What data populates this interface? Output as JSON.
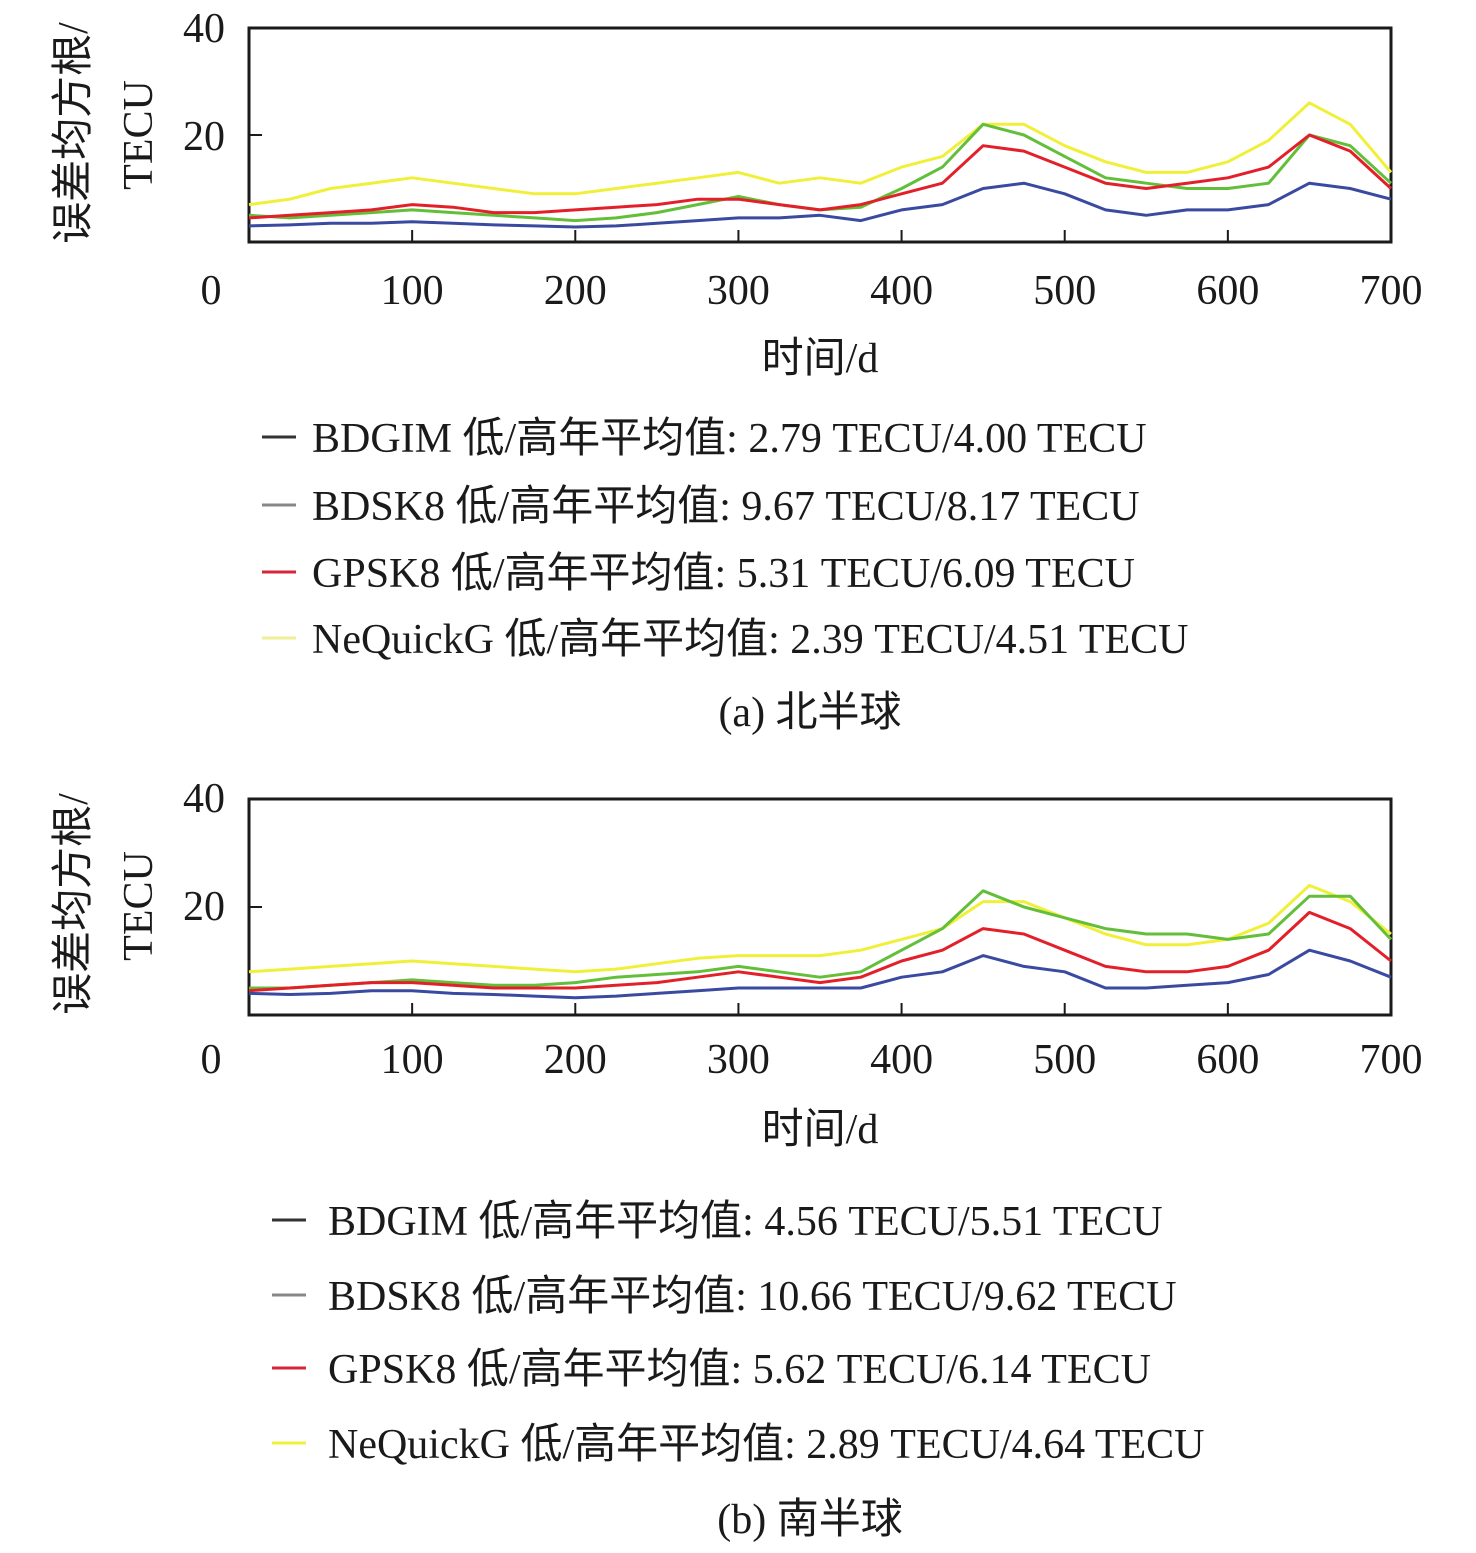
{
  "colors": {
    "BDGIM": "#3a4aa0",
    "BDSK8": "#63bf3a",
    "GPSK8": "#e3202a",
    "NeQuickG": "#f0f03a",
    "axis": "#1a1a1a"
  },
  "legend_swatch_colors": {
    "BDGIM": "#333333",
    "BDSK8": "#888888",
    "GPSK8": "#d6273a",
    "NeQuickG_a": "#efef9a",
    "NeQuickG_b": "#f0f03a"
  },
  "chart_data": [
    {
      "type": "line",
      "ylabel_line1": "误差均方根/",
      "ylabel_line2": "TECU",
      "xlabel": "时间/d",
      "xlim": [
        0,
        700
      ],
      "ylim": [
        0,
        40
      ],
      "xticks": [
        "0",
        "100",
        "200",
        "300",
        "400",
        "500",
        "600",
        "700"
      ],
      "yticks": [
        "40",
        "20"
      ],
      "caption": "(a) 北半球",
      "legend": [
        {
          "key": "BDGIM",
          "text": "BDGIM 低/高年平均值: 2.79 TECU/4.00 TECU"
        },
        {
          "key": "BDSK8",
          "text": "BDSK8 低/高年平均值: 9.67 TECU/8.17 TECU"
        },
        {
          "key": "GPSK8",
          "text": "GPSK8 低/高年平均值: 5.31 TECU/6.09 TECU"
        },
        {
          "key": "NeQuickG",
          "text": "NeQuickG 低/高年平均值: 2.39 TECU/4.51 TECU"
        }
      ],
      "series": [
        {
          "name": "BDGIM",
          "x": [
            0,
            25,
            50,
            75,
            100,
            125,
            150,
            175,
            200,
            225,
            250,
            275,
            300,
            325,
            350,
            375,
            400,
            425,
            450,
            475,
            500,
            525,
            550,
            575,
            600,
            625,
            650,
            675,
            700
          ],
          "y": [
            3,
            3.2,
            3.5,
            3.5,
            3.8,
            3.5,
            3.2,
            3,
            2.8,
            3,
            3.5,
            4,
            4.5,
            4.5,
            5,
            4,
            6,
            7,
            10,
            11,
            9,
            6,
            5,
            6,
            6,
            7,
            11,
            10,
            8
          ]
        },
        {
          "name": "BDSK8",
          "x": [
            0,
            25,
            50,
            75,
            100,
            125,
            150,
            175,
            200,
            225,
            250,
            275,
            300,
            325,
            350,
            375,
            400,
            425,
            450,
            475,
            500,
            525,
            550,
            575,
            600,
            625,
            650,
            675,
            700
          ],
          "y": [
            5,
            4.5,
            5,
            5.5,
            6,
            5.5,
            5,
            4.5,
            4,
            4.5,
            5.5,
            7,
            8.5,
            7,
            6,
            6.5,
            10,
            14,
            22,
            20,
            16,
            12,
            11,
            10,
            10,
            11,
            20,
            18,
            11
          ]
        },
        {
          "name": "GPSK8",
          "x": [
            0,
            25,
            50,
            75,
            100,
            125,
            150,
            175,
            200,
            225,
            250,
            275,
            300,
            325,
            350,
            375,
            400,
            425,
            450,
            475,
            500,
            525,
            550,
            575,
            600,
            625,
            650,
            675,
            700
          ],
          "y": [
            4.5,
            5,
            5.5,
            6,
            7,
            6.5,
            5.5,
            5.5,
            6,
            6.5,
            7,
            8,
            8,
            7,
            6,
            7,
            9,
            11,
            18,
            17,
            14,
            11,
            10,
            11,
            12,
            14,
            20,
            17,
            10
          ]
        },
        {
          "name": "NeQuickG",
          "x": [
            0,
            25,
            50,
            75,
            100,
            125,
            150,
            175,
            200,
            225,
            250,
            275,
            300,
            325,
            350,
            375,
            400,
            425,
            450,
            475,
            500,
            525,
            550,
            575,
            600,
            625,
            650,
            675,
            700
          ],
          "y": [
            7,
            8,
            10,
            11,
            12,
            11,
            10,
            9,
            9,
            10,
            11,
            12,
            13,
            11,
            12,
            11,
            14,
            16,
            22,
            22,
            18,
            15,
            13,
            13,
            15,
            19,
            26,
            22,
            13
          ]
        }
      ]
    },
    {
      "type": "line",
      "ylabel_line1": "误差均方根/",
      "ylabel_line2": "TECU",
      "xlabel": "时间/d",
      "xlim": [
        0,
        700
      ],
      "ylim": [
        0,
        40
      ],
      "xticks": [
        "0",
        "100",
        "200",
        "300",
        "400",
        "500",
        "600",
        "700"
      ],
      "yticks": [
        "40",
        "20"
      ],
      "caption": "(b) 南半球",
      "legend": [
        {
          "key": "BDGIM",
          "text": "BDGIM 低/高年平均值: 4.56 TECU/5.51 TECU"
        },
        {
          "key": "BDSK8",
          "text": "BDSK8 低/高年平均值: 10.66 TECU/9.62 TECU"
        },
        {
          "key": "GPSK8",
          "text": "GPSK8 低/高年平均值: 5.62 TECU/6.14 TECU"
        },
        {
          "key": "NeQuickG",
          "text": "NeQuickG 低/高年平均值: 2.89 TECU/4.64 TECU"
        }
      ],
      "series": [
        {
          "name": "BDGIM",
          "x": [
            0,
            25,
            50,
            75,
            100,
            125,
            150,
            175,
            200,
            225,
            250,
            275,
            300,
            325,
            350,
            375,
            400,
            425,
            450,
            475,
            500,
            525,
            550,
            575,
            600,
            625,
            650,
            675,
            700
          ],
          "y": [
            4,
            3.8,
            4,
            4.5,
            4.5,
            4,
            3.8,
            3.5,
            3.2,
            3.5,
            4,
            4.5,
            5,
            5,
            5,
            5,
            7,
            8,
            11,
            9,
            8,
            5,
            5,
            5.5,
            6,
            7.5,
            12,
            10,
            7
          ]
        },
        {
          "name": "BDSK8",
          "x": [
            0,
            25,
            50,
            75,
            100,
            125,
            150,
            175,
            200,
            225,
            250,
            275,
            300,
            325,
            350,
            375,
            400,
            425,
            450,
            475,
            500,
            525,
            550,
            575,
            600,
            625,
            650,
            675,
            700
          ],
          "y": [
            5,
            5,
            5.5,
            6,
            6.5,
            6,
            5.5,
            5.5,
            6,
            7,
            7.5,
            8,
            9,
            8,
            7,
            8,
            12,
            16,
            23,
            20,
            18,
            16,
            15,
            15,
            14,
            15,
            22,
            22,
            14
          ]
        },
        {
          "name": "GPSK8",
          "x": [
            0,
            25,
            50,
            75,
            100,
            125,
            150,
            175,
            200,
            225,
            250,
            275,
            300,
            325,
            350,
            375,
            400,
            425,
            450,
            475,
            500,
            525,
            550,
            575,
            600,
            625,
            650,
            675,
            700
          ],
          "y": [
            4.5,
            5,
            5.5,
            6,
            6,
            5.5,
            5,
            5,
            5,
            5.5,
            6,
            7,
            8,
            7,
            6,
            7,
            10,
            12,
            16,
            15,
            12,
            9,
            8,
            8,
            9,
            12,
            19,
            16,
            10
          ]
        },
        {
          "name": "NeQuickG",
          "x": [
            0,
            25,
            50,
            75,
            100,
            125,
            150,
            175,
            200,
            225,
            250,
            275,
            300,
            325,
            350,
            375,
            400,
            425,
            450,
            475,
            500,
            525,
            550,
            575,
            600,
            625,
            650,
            675,
            700
          ],
          "y": [
            8,
            8.5,
            9,
            9.5,
            10,
            9.5,
            9,
            8.5,
            8,
            8.5,
            9.5,
            10.5,
            11,
            11,
            11,
            12,
            14,
            16,
            21,
            21,
            18,
            15,
            13,
            13,
            14,
            17,
            24,
            21,
            15
          ]
        }
      ]
    }
  ]
}
